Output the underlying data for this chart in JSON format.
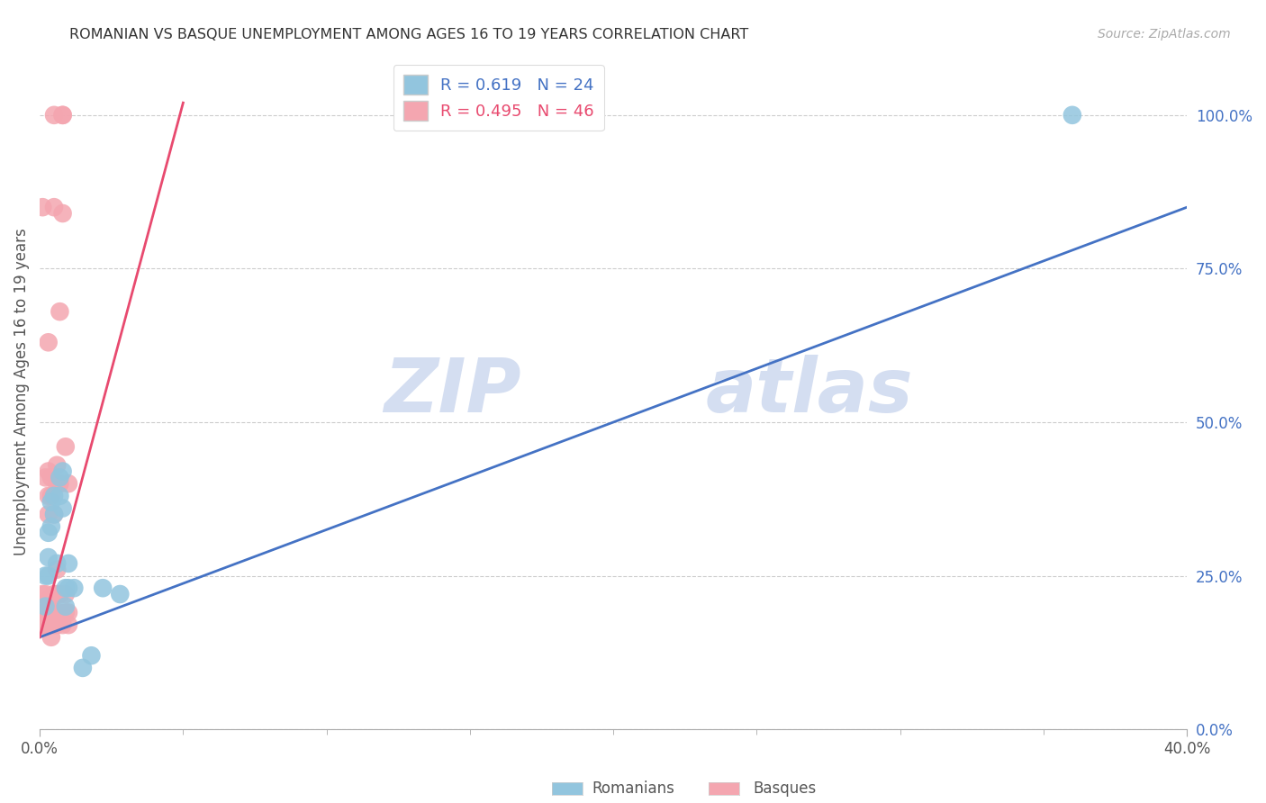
{
  "title": "ROMANIAN VS BASQUE UNEMPLOYMENT AMONG AGES 16 TO 19 YEARS CORRELATION CHART",
  "source": "Source: ZipAtlas.com",
  "ylabel": "Unemployment Among Ages 16 to 19 years",
  "xlabel_ticks": [
    "0.0%",
    "40.0%"
  ],
  "xlabel_vals": [
    0.0,
    0.4
  ],
  "ylabel_ticks_right": [
    "0.0%",
    "25.0%",
    "50.0%",
    "75.0%",
    "100.0%"
  ],
  "ylabel_vals_right": [
    0.0,
    0.25,
    0.5,
    0.75,
    1.0
  ],
  "xmin": 0.0,
  "xmax": 0.4,
  "ymin": 0.0,
  "ymax": 1.1,
  "romanian_color": "#92C5DE",
  "basque_color": "#F4A6B0",
  "romanian_line_color": "#4472C4",
  "basque_line_color": "#E84A6F",
  "R_romanian": 0.619,
  "N_romanian": 24,
  "R_basque": 0.495,
  "N_basque": 46,
  "legend_label_romanian": "Romanians",
  "legend_label_basque": "Basques",
  "watermark_zip": "ZIP",
  "watermark_atlas": "atlas",
  "romanians_x": [
    0.002,
    0.002,
    0.003,
    0.003,
    0.003,
    0.004,
    0.004,
    0.005,
    0.005,
    0.006,
    0.007,
    0.007,
    0.008,
    0.008,
    0.009,
    0.009,
    0.01,
    0.01,
    0.012,
    0.015,
    0.018,
    0.022,
    0.028,
    0.36
  ],
  "romanians_y": [
    0.2,
    0.25,
    0.25,
    0.28,
    0.32,
    0.33,
    0.37,
    0.35,
    0.38,
    0.27,
    0.38,
    0.41,
    0.36,
    0.42,
    0.2,
    0.23,
    0.23,
    0.27,
    0.23,
    0.1,
    0.12,
    0.23,
    0.22,
    1.0
  ],
  "basques_x": [
    0.001,
    0.001,
    0.001,
    0.001,
    0.002,
    0.002,
    0.002,
    0.002,
    0.003,
    0.003,
    0.003,
    0.003,
    0.003,
    0.003,
    0.003,
    0.004,
    0.004,
    0.004,
    0.004,
    0.004,
    0.005,
    0.005,
    0.005,
    0.005,
    0.005,
    0.005,
    0.006,
    0.006,
    0.006,
    0.006,
    0.006,
    0.007,
    0.007,
    0.007,
    0.007,
    0.007,
    0.008,
    0.008,
    0.008,
    0.008,
    0.009,
    0.009,
    0.009,
    0.01,
    0.01,
    0.01
  ],
  "basques_y": [
    0.17,
    0.19,
    0.22,
    0.85,
    0.17,
    0.19,
    0.22,
    0.41,
    0.17,
    0.19,
    0.21,
    0.35,
    0.38,
    0.42,
    0.63,
    0.19,
    0.21,
    0.15,
    0.38,
    0.41,
    0.19,
    0.22,
    0.17,
    0.35,
    0.85,
    1.0,
    0.22,
    0.26,
    0.4,
    0.43,
    0.17,
    0.19,
    0.22,
    0.18,
    0.4,
    0.68,
    0.84,
    1.0,
    1.0,
    0.17,
    0.19,
    0.22,
    0.46,
    0.17,
    0.19,
    0.4
  ],
  "blue_line": [
    [
      0.0,
      0.4
    ],
    [
      0.15,
      0.85
    ]
  ],
  "pink_line": [
    [
      0.0,
      0.05
    ],
    [
      0.15,
      1.02
    ]
  ]
}
